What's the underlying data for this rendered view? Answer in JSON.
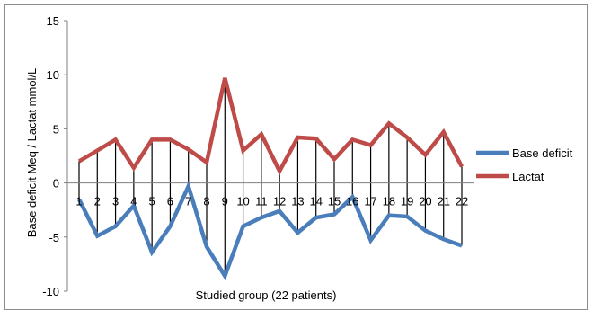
{
  "chart_data": {
    "type": "line",
    "title": "",
    "xlabel": "Studied group (22 patients)",
    "ylabel": "Base deficit Meq / Lactat mmol/L",
    "ylim": [
      -10,
      15
    ],
    "yticks": [
      -10,
      -5,
      0,
      5,
      10,
      15
    ],
    "grid": false,
    "legend_position": "right",
    "categories": [
      "1",
      "2",
      "3",
      "4",
      "5",
      "6",
      "7",
      "8",
      "9",
      "10",
      "11",
      "12",
      "13",
      "14",
      "15",
      "16",
      "17",
      "18",
      "19",
      "20",
      "21",
      "22"
    ],
    "series": [
      {
        "name": "Base deficit",
        "color": "#4a7ebb",
        "values": [
          -1.5,
          -4.9,
          -4.0,
          -2.1,
          -6.4,
          -4.0,
          -0.3,
          -5.9,
          -8.6,
          -4.0,
          -3.2,
          -2.6,
          -4.6,
          -3.2,
          -2.9,
          -1.3,
          -5.3,
          -3.0,
          -3.1,
          -4.4,
          -5.2,
          -5.8
        ]
      },
      {
        "name": "Lactat",
        "color": "#be4b48",
        "values": [
          2.0,
          3.0,
          4.0,
          1.4,
          4.0,
          4.0,
          3.1,
          1.9,
          9.7,
          3.0,
          4.5,
          1.1,
          4.2,
          4.1,
          2.2,
          4.0,
          3.5,
          5.5,
          4.2,
          2.6,
          4.7,
          1.5
        ]
      }
    ],
    "drop_lines": true
  }
}
